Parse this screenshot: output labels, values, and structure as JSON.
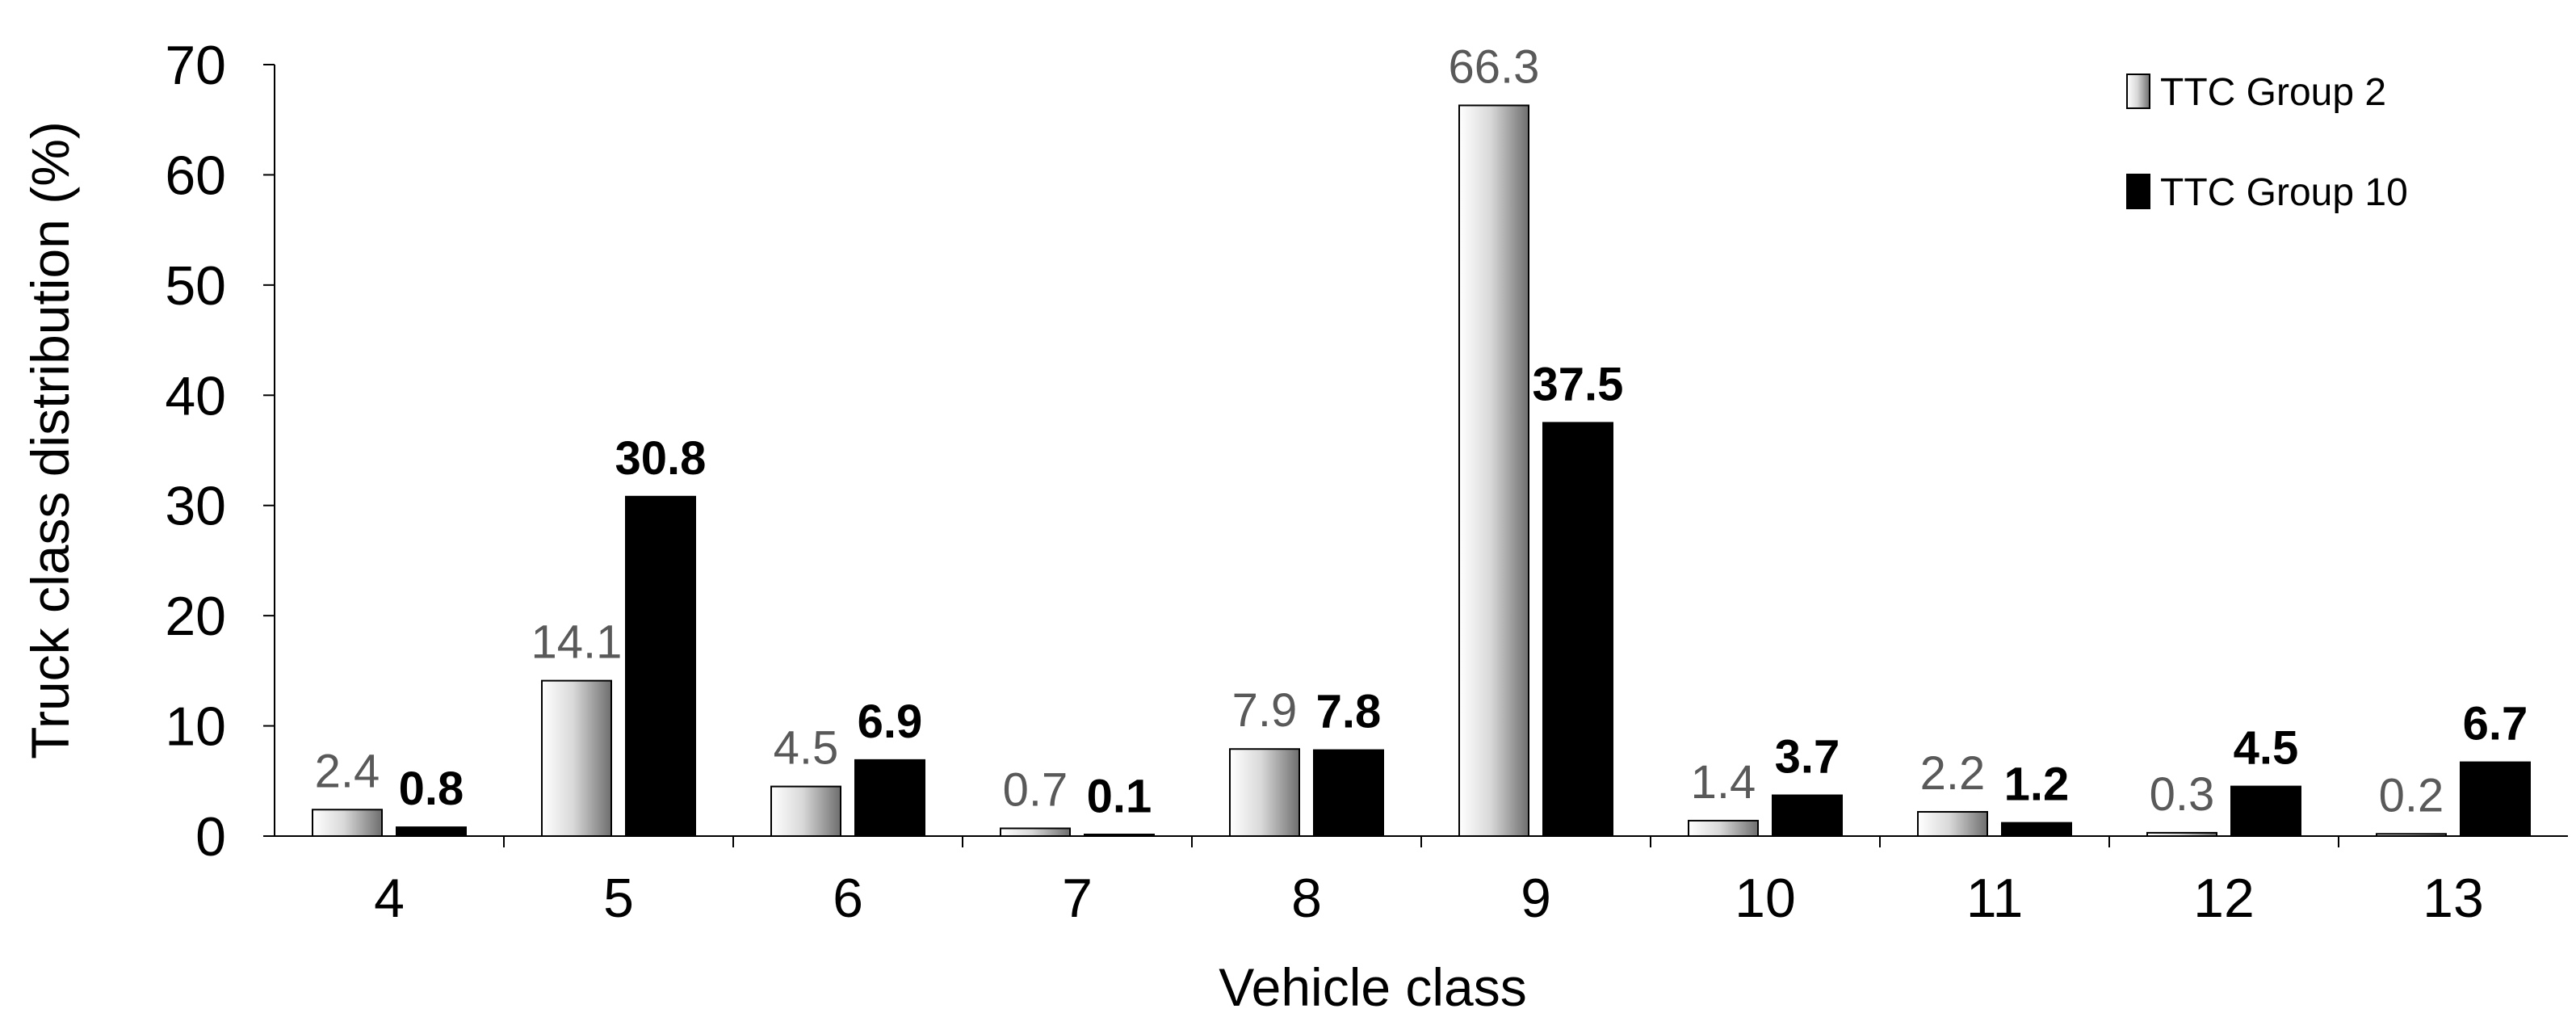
{
  "chart_data": {
    "type": "bar",
    "title": "",
    "xlabel": "Vehicle class",
    "ylabel": "Truck class distribution  (%)",
    "categories": [
      "4",
      "5",
      "6",
      "7",
      "8",
      "9",
      "10",
      "11",
      "12",
      "13"
    ],
    "ylim": [
      0,
      70
    ],
    "yticks": [
      0,
      10,
      20,
      30,
      40,
      50,
      60,
      70
    ],
    "grid": false,
    "legend_position": "top-right",
    "series": [
      {
        "name": "TTC Group 2",
        "fill": "gradient-gray",
        "values": [
          2.4,
          14.1,
          4.5,
          0.7,
          7.9,
          66.3,
          1.4,
          2.2,
          0.3,
          0.2
        ],
        "labels": [
          "2.4",
          "14.1",
          "4.5",
          "0.7",
          "7.9",
          "66.3",
          "1.4",
          "2.2",
          "0.3",
          "0.2"
        ]
      },
      {
        "name": "TTC Group 10",
        "fill": "#000000",
        "values": [
          0.8,
          30.8,
          6.9,
          0.1,
          7.8,
          37.5,
          3.7,
          1.2,
          4.5,
          6.7
        ],
        "labels": [
          "0.8",
          "30.8",
          "6.9",
          "0.1",
          "7.8",
          "37.5",
          "3.7",
          "1.2",
          "4.5",
          "6.7"
        ]
      }
    ]
  }
}
